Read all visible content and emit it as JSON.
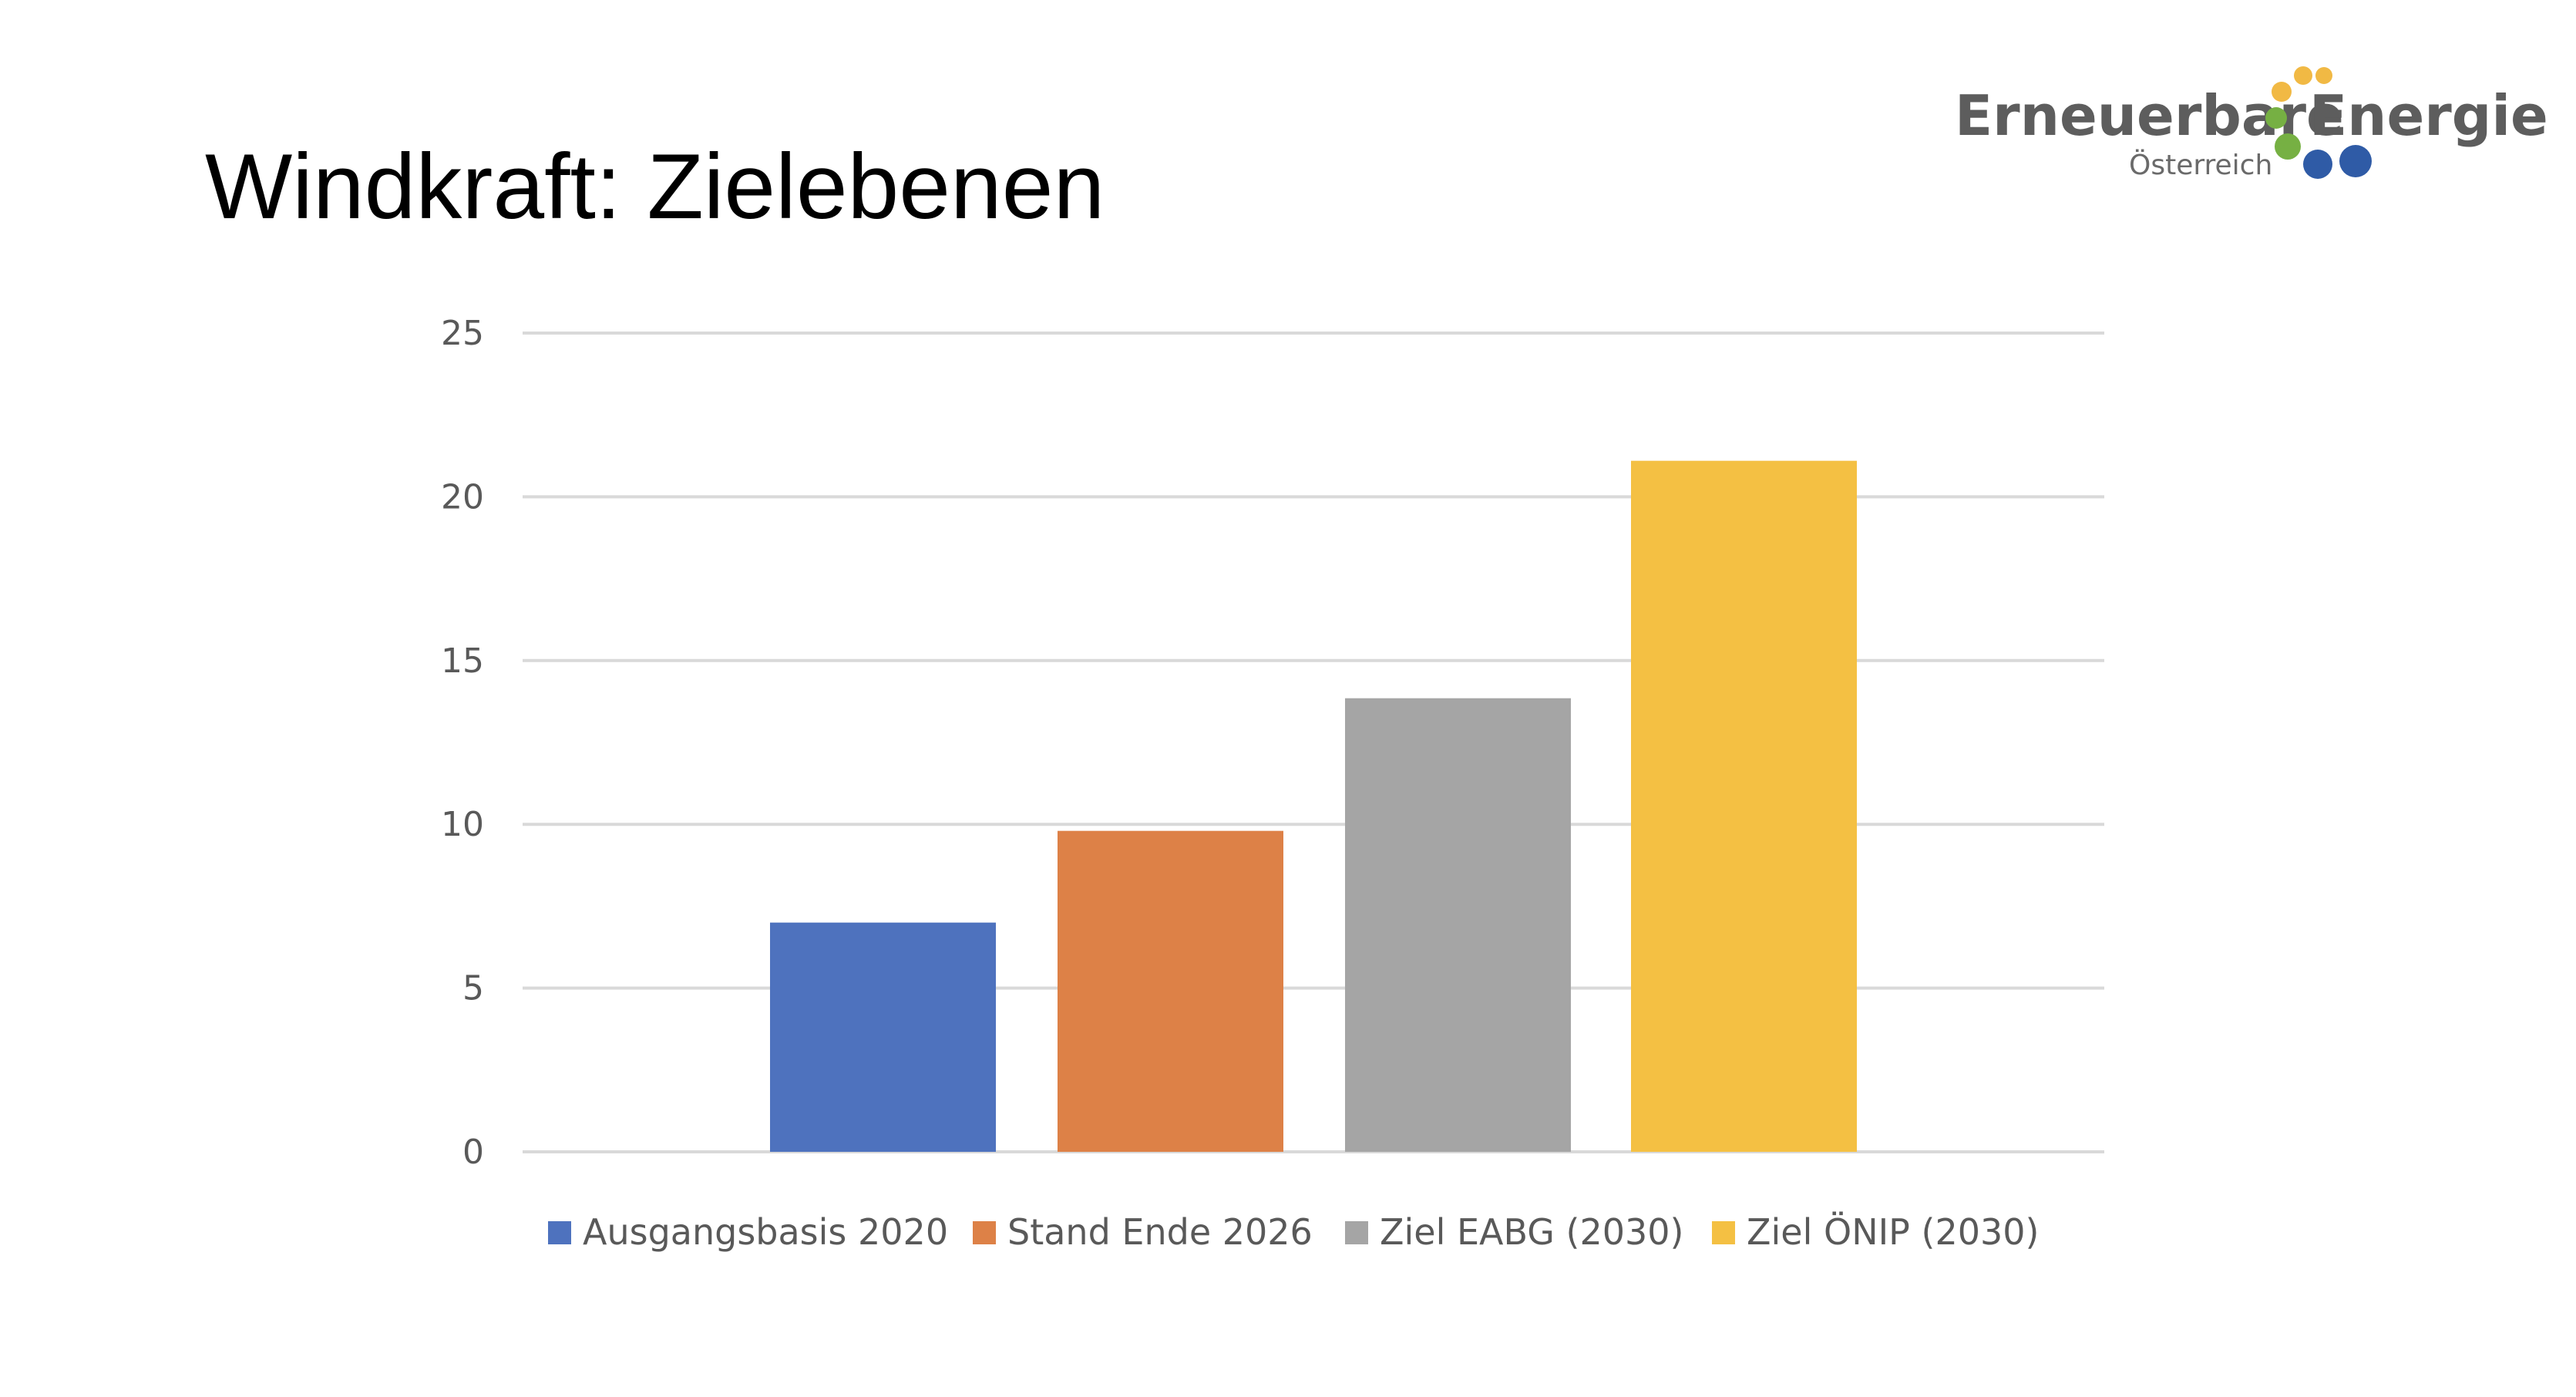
{
  "logo": {
    "line1_left": "Erneuerbare",
    "line1_right": "Energie",
    "line2": "Österreich"
  },
  "chart_data": {
    "type": "bar",
    "title": "Windkraft: Zielebenen",
    "xlabel": "",
    "ylabel": "",
    "ylim": [
      0,
      25
    ],
    "yticks": [
      0,
      5,
      10,
      15,
      20,
      25
    ],
    "grid": true,
    "legend_position": "bottom",
    "series": [
      {
        "name": "Ausgangsbasis 2020",
        "value": 7.0,
        "color": "#4e72be"
      },
      {
        "name": "Stand Ende 2026",
        "value": 9.8,
        "color": "#dd8147"
      },
      {
        "name": "Ziel EABG (2030)",
        "value": 13.85,
        "color": "#a5a5a5"
      },
      {
        "name": "Ziel ÖNIP (2030)",
        "value": 21.1,
        "color": "#f4c043"
      }
    ]
  }
}
